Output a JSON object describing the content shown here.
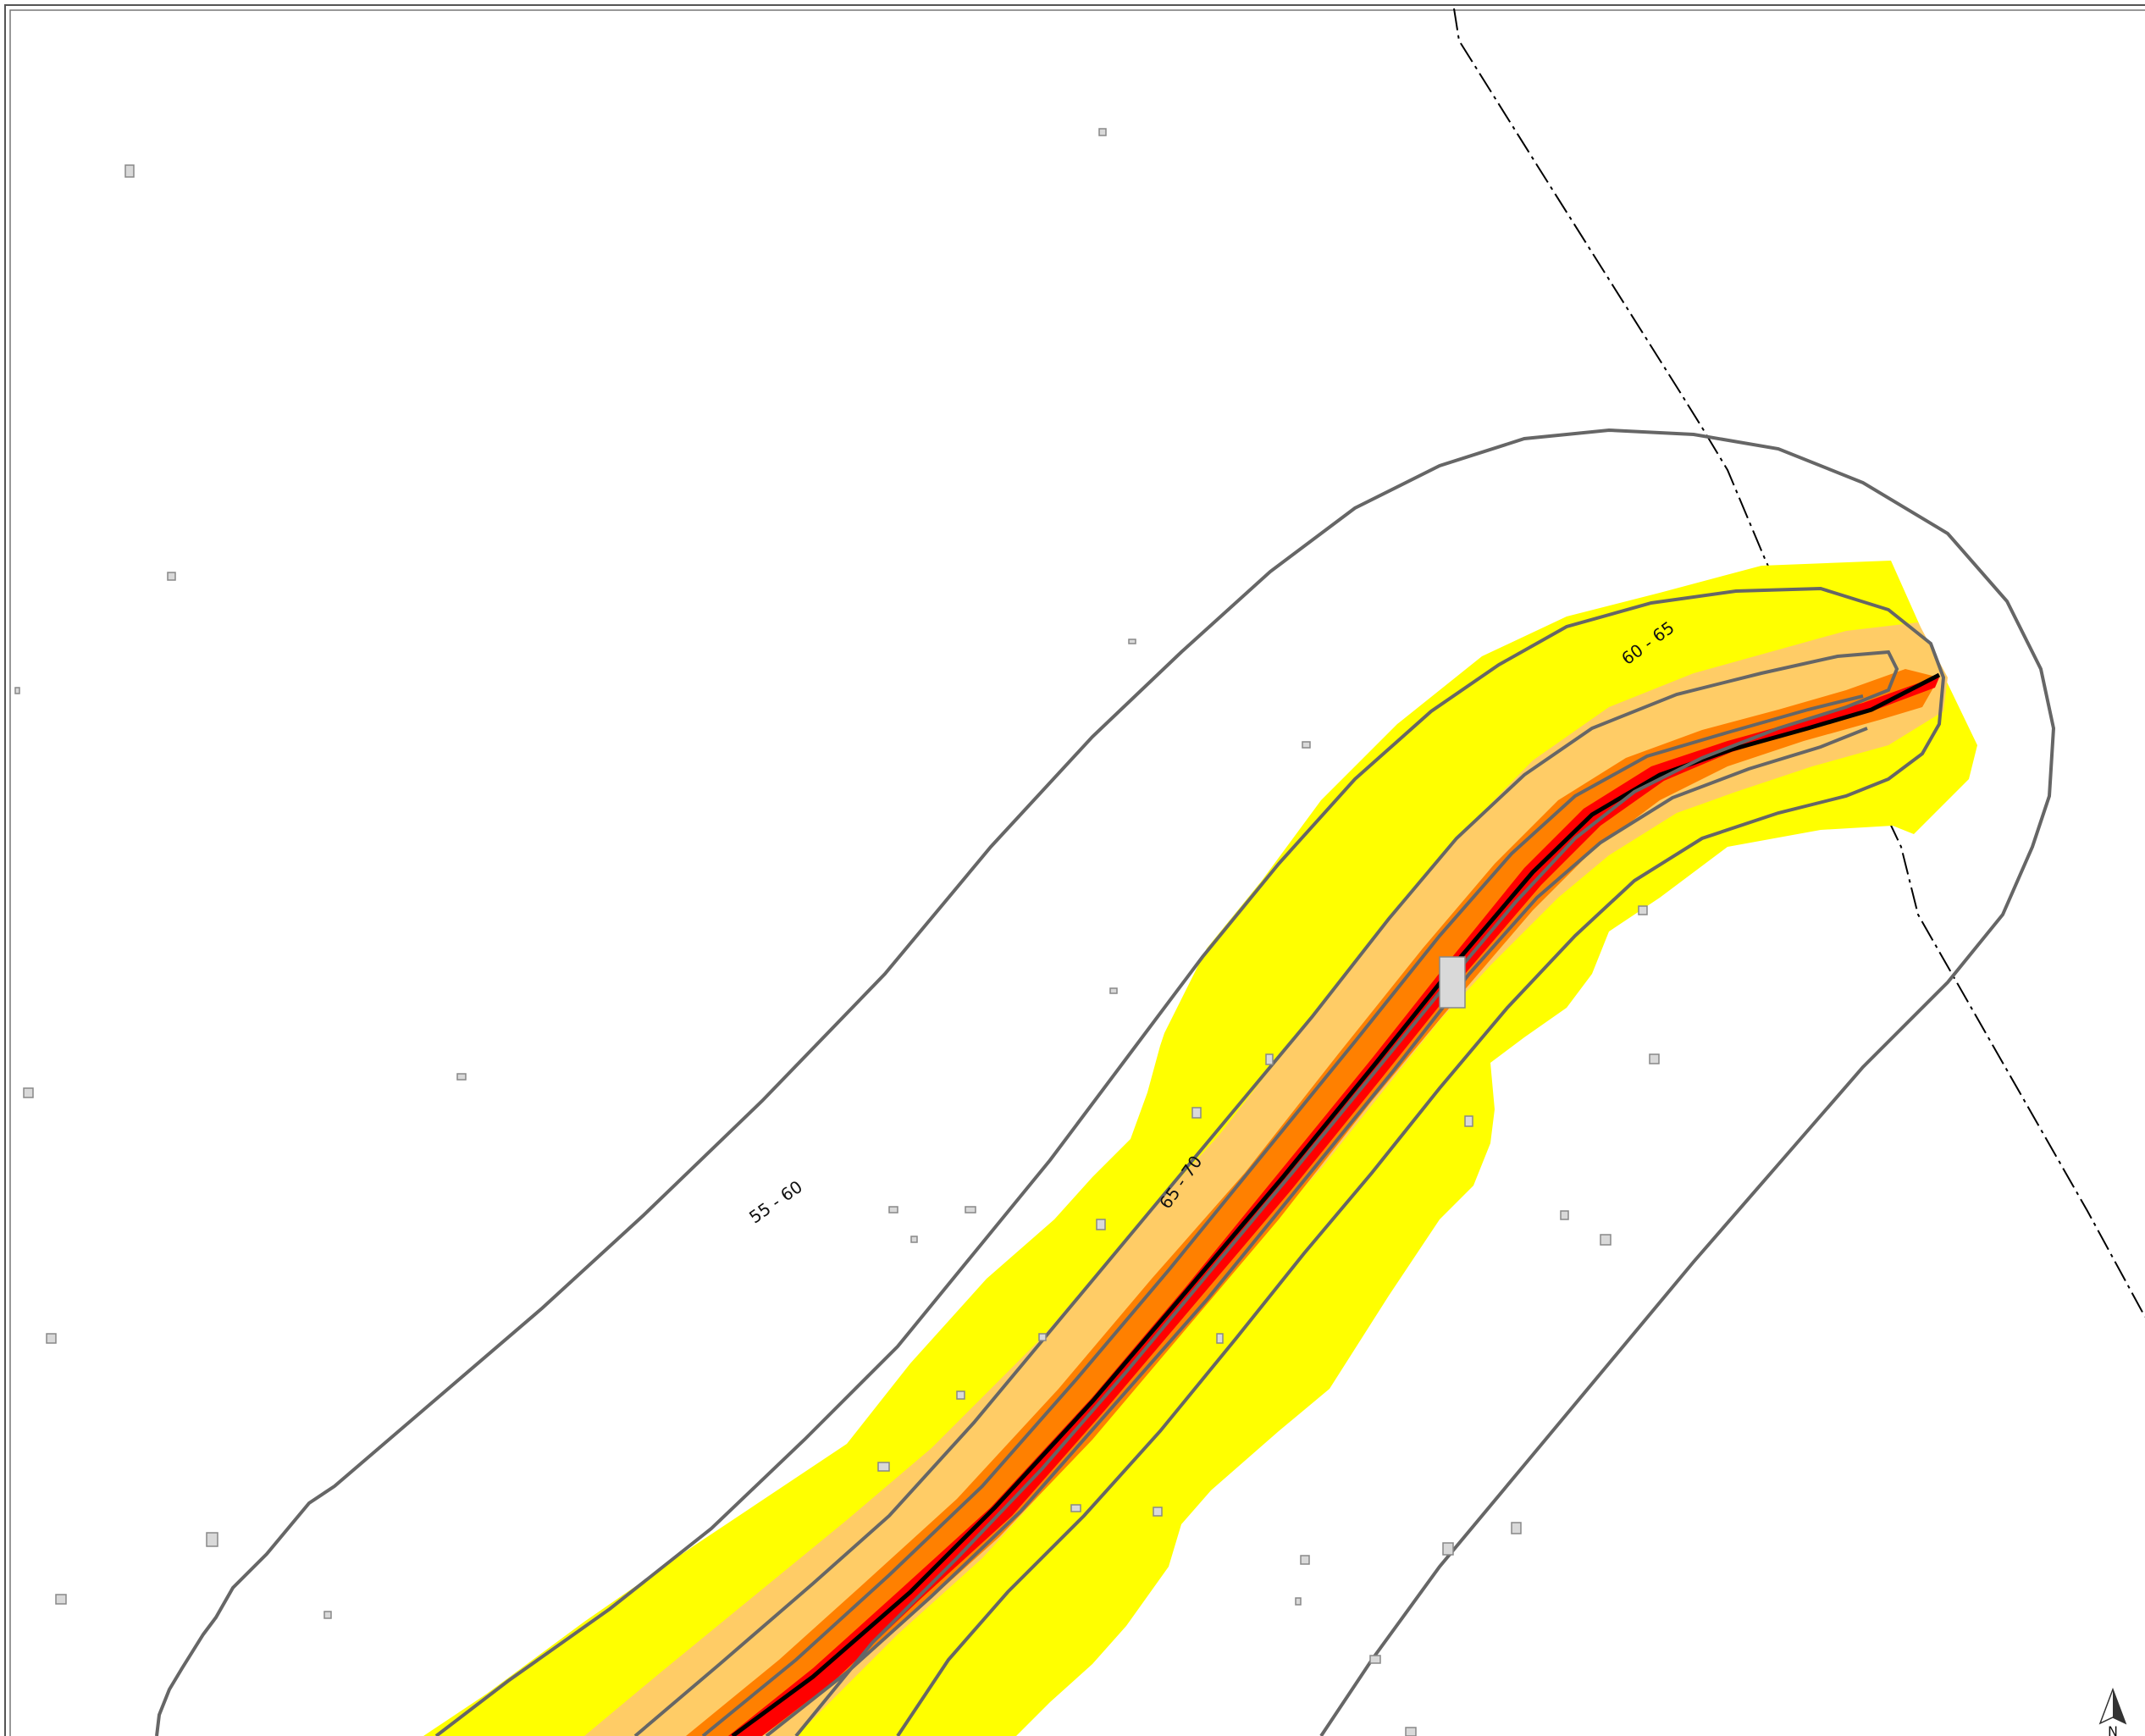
{
  "map": {
    "contour_labels": {
      "outer": "55 - 60",
      "middle": "60 - 65",
      "inner": "65 - 70"
    },
    "north_arrow_label": "N",
    "colors": {
      "band_55_60": "#ffffff",
      "band_60_65": "#ffff00",
      "band_65_70": "#ffcc66",
      "band_70_75": "#ff8000",
      "band_75_plus": "#ff0000",
      "road_line": "#000000",
      "contour_line": "#666666",
      "boundary_line": "#000000",
      "building_fill": "#d9d9d9",
      "building_stroke": "#888888"
    }
  }
}
